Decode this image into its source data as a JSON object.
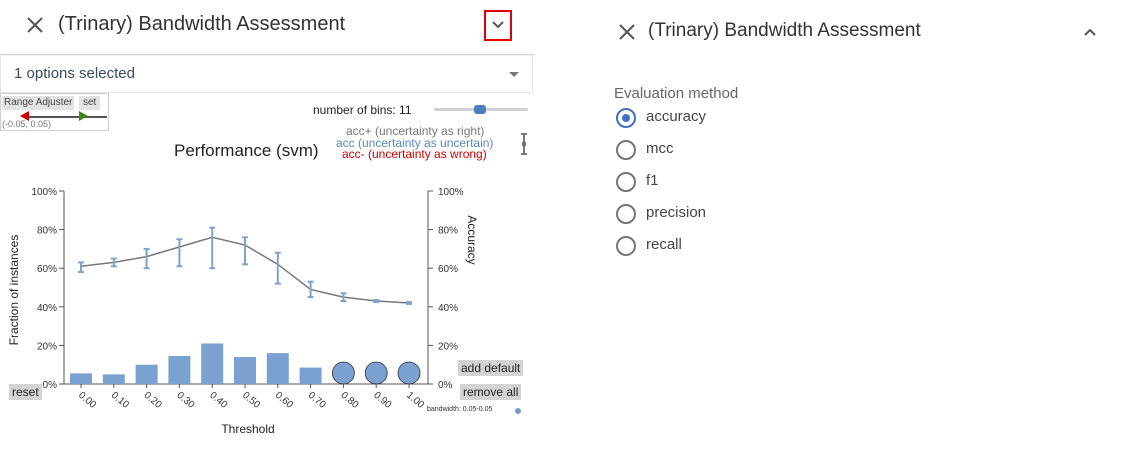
{
  "left_panel": {
    "title": "(Trinary) Bandwidth Assessment",
    "selector": {
      "value": "1 options selected"
    },
    "range_adjuster": {
      "title": "Range Adjuster",
      "set_label": "set",
      "value": "(-0.05, 0.05)"
    },
    "bins": {
      "label": "number of bins: 11",
      "value": 11
    },
    "legend": {
      "acc_plus": "acc+ (uncertainty as right)",
      "acc": "acc (uncertainty as uncertain)",
      "acc_minus": "acc- (uncertainty as wrong)"
    },
    "buttons": {
      "reset": "reset",
      "add_default": "add default",
      "remove_all": "remove all"
    },
    "bandwidth_label": "bandwidth: 0.05-0.05"
  },
  "colors": {
    "bar": "#7aa1cf",
    "line": "#777777",
    "error_bar": "#7ea4cb",
    "acc_plus": "#777777",
    "acc": "#5b87bd",
    "acc_minus": "#d00000",
    "accent": "#3e6fc4",
    "highlight": "#e00000"
  },
  "chart_data": {
    "type": "bar",
    "title": "Performance (svm)",
    "xlabel": "Threshold",
    "ylabel_left": "Fraction of instances",
    "ylabel_right": "Accuracy",
    "categories": [
      "0.00",
      "0.10",
      "0.20",
      "0.30",
      "0.40",
      "0.50",
      "0.60",
      "0.70",
      "0.80",
      "0.90",
      "1.00"
    ],
    "y_ticks": [
      "0%",
      "20%",
      "40%",
      "60%",
      "80%",
      "100%"
    ],
    "ylim": [
      0,
      100
    ],
    "series": [
      {
        "values": [
          5.5,
          5,
          10,
          14.5,
          21,
          14,
          16,
          8.5,
          3,
          3,
          3
        ],
        "marker": [
          null,
          null,
          null,
          null,
          null,
          null,
          null,
          null,
          "circle",
          "circle",
          "circle"
        ]
      },
      {
        "values": [
          61,
          63,
          66,
          71,
          76,
          72,
          62,
          49,
          45,
          43,
          42
        ],
        "upper": [
          63,
          65,
          70,
          75,
          81,
          76,
          68,
          53,
          47,
          43.5,
          42.5
        ],
        "lower": [
          58,
          61,
          60,
          61,
          60,
          62,
          52,
          45,
          43,
          42.5,
          41.5
        ]
      }
    ]
  },
  "right_panel": {
    "title": "(Trinary) Bandwidth Assessment",
    "eval_label": "Evaluation method",
    "options": [
      {
        "label": "accuracy",
        "selected": true
      },
      {
        "label": "mcc",
        "selected": false
      },
      {
        "label": "f1",
        "selected": false
      },
      {
        "label": "precision",
        "selected": false
      },
      {
        "label": "recall",
        "selected": false
      }
    ]
  }
}
